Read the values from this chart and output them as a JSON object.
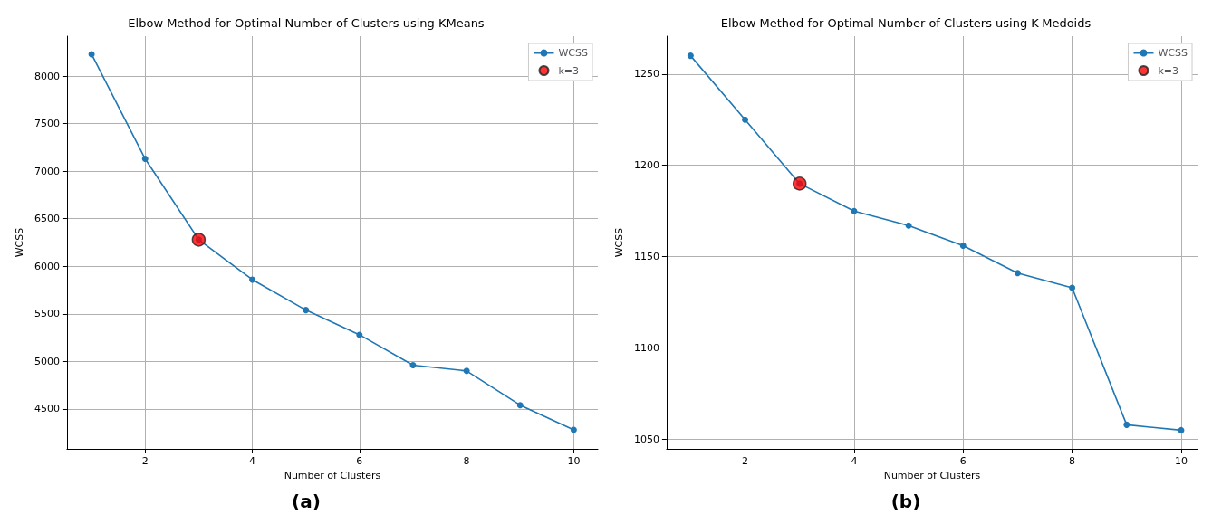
{
  "chart_data": [
    {
      "type": "line",
      "title": "Elbow Method for Optimal Number of Clusters using KMeans",
      "xlabel": "Number of Clusters",
      "ylabel": "WCSS",
      "annotations": [
        "(a)"
      ],
      "xlim": [
        0.54,
        10.45
      ],
      "xticks": [
        2,
        4,
        6,
        8,
        10
      ],
      "ylim": [
        4080,
        8420
      ],
      "yticks": [
        4500,
        5000,
        5500,
        6000,
        6500,
        7000,
        7500,
        8000
      ],
      "grid": true,
      "legend": "top right",
      "marker": "circle",
      "series": [
        {
          "name": "WCSS",
          "color": "#1f77b4",
          "x": [
            1,
            2,
            3,
            4,
            5,
            6,
            7,
            8,
            9,
            10
          ],
          "values": [
            8230,
            7130,
            6280,
            5860,
            5540,
            5280,
            4960,
            4900,
            4540,
            4280
          ]
        },
        {
          "name": "k=3",
          "type": "scatter",
          "color": "#ff0000",
          "x": [
            3
          ],
          "values": [
            6280
          ]
        }
      ]
    },
    {
      "type": "line",
      "title": "Elbow Method for Optimal Number of Clusters using K-Medoids",
      "xlabel": "Number of Clusters",
      "ylabel": "WCSS",
      "annotations": [
        "(b)"
      ],
      "xlim": [
        0.56,
        10.3
      ],
      "xticks": [
        2,
        4,
        6,
        8,
        10
      ],
      "ylim": [
        1044.8,
        1270.7
      ],
      "yticks": [
        1050,
        1100,
        1150,
        1200,
        1250
      ],
      "grid": true,
      "legend": "top right",
      "marker": "circle",
      "series": [
        {
          "name": "WCSS",
          "color": "#1f77b4",
          "x": [
            1,
            2,
            3,
            4,
            5,
            6,
            7,
            8,
            9,
            10
          ],
          "values": [
            1260,
            1225,
            1190,
            1175,
            1167,
            1156,
            1141,
            1133,
            1058,
            1055
          ]
        },
        {
          "name": "k=3",
          "type": "scatter",
          "color": "#ff0000",
          "x": [
            3
          ],
          "values": [
            1190
          ]
        }
      ]
    }
  ]
}
